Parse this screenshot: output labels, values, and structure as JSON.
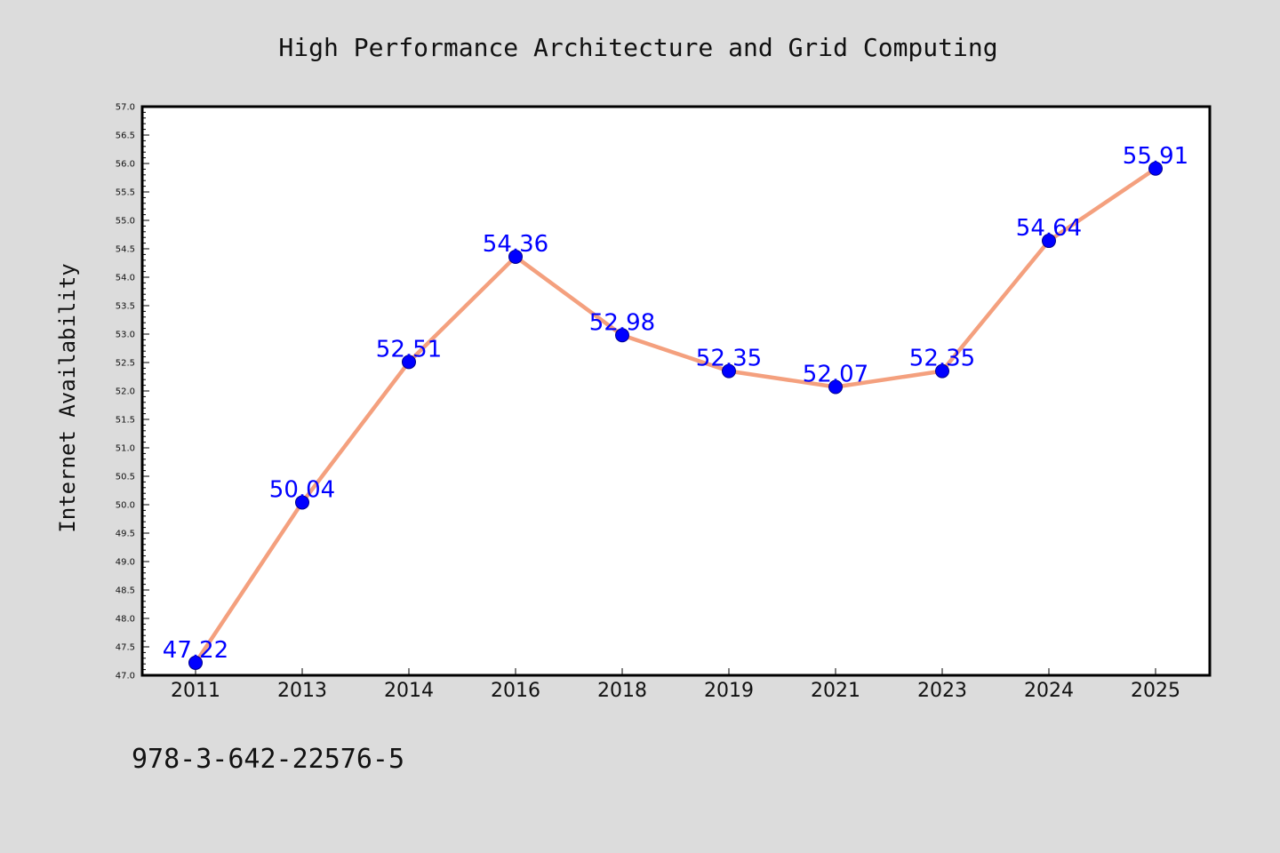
{
  "chart_data": {
    "type": "line",
    "title": "High Performance Architecture and Grid Computing",
    "xlabel": "",
    "ylabel": "Internet Availability",
    "categories": [
      "2011",
      "2013",
      "2014",
      "2016",
      "2018",
      "2019",
      "2021",
      "2023",
      "2024",
      "2025"
    ],
    "series": [
      {
        "values": [
          47.22,
          50.04,
          52.51,
          54.36,
          52.98,
          52.35,
          52.07,
          52.35,
          54.64,
          55.91
        ]
      }
    ],
    "data_labels": [
      "47.22",
      "50.04",
      "52.51",
      "54.36",
      "52.98",
      "52.35",
      "52.07",
      "52.35",
      "54.64",
      "55.91"
    ],
    "ylim": [
      47.0,
      57.0
    ],
    "yticks": [
      "47.0",
      "47.5",
      "48.0",
      "48.5",
      "49.0",
      "49.5",
      "50.0",
      "50.5",
      "51.0",
      "51.5",
      "52.0",
      "52.5",
      "53.0",
      "53.5",
      "54.0",
      "54.5",
      "55.0",
      "55.5",
      "56.0",
      "56.5",
      "57.0"
    ],
    "grid": false,
    "legend": "none",
    "colors": {
      "line": "#f4a07e",
      "marker": "#0000ff",
      "label": "#0000ff",
      "background": "#dcdcdc",
      "plot_bg": "#ffffff"
    }
  },
  "footnote": "978-3-642-22576-5"
}
